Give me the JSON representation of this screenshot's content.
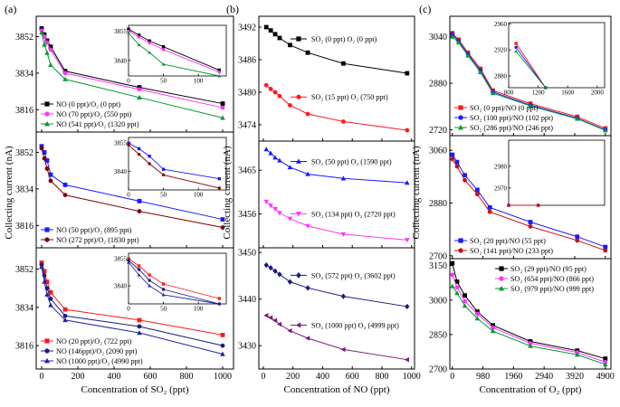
{
  "chart_data": [
    {
      "id": "a",
      "type": "line",
      "panel_label": "(a)",
      "xlabel": "Concentration of SO₂ (ppt)",
      "ylabel": "Collecting current (nA)",
      "xlim": [
        -30,
        1060
      ],
      "xticks": [
        "0",
        "200",
        "400",
        "600",
        "800",
        "1000"
      ],
      "subplots": [
        {
          "ylim": [
            3805,
            3862
          ],
          "yticks": [
            "3816",
            "3834",
            "3852"
          ],
          "legend_position": "bottom-left",
          "inset": {
            "xlim": [
              0,
              140
            ],
            "ylim": [
              3832,
              3858
            ],
            "xticks": [
              "0",
              "50",
              "100"
            ],
            "yticks": [
              "3840",
              "3855"
            ]
          },
          "series": [
            {
              "name": "NO (0 ppt)/O₂ (0 ppt)",
              "color": "#000000",
              "marker": "square",
              "x": [
                0,
                15,
                30,
                50,
                130,
                540,
                1000
              ],
              "y": [
                3856,
                3853,
                3850,
                3847,
                3835,
                3827,
                3819
              ]
            },
            {
              "name": "NO (70 ppt)/O₂ (550 ppt)",
              "color": "#ff33ff",
              "marker": "circle",
              "x": [
                0,
                15,
                30,
                50,
                130,
                540,
                1000
              ],
              "y": [
                3855,
                3852,
                3849,
                3845.5,
                3834,
                3826,
                3817
              ]
            },
            {
              "name": "NO (541 ppt)/O₂ (1320 ppt)",
              "color": "#009933",
              "marker": "triangle",
              "x": [
                0,
                15,
                30,
                50,
                130,
                540,
                1000
              ],
              "y": [
                3854,
                3848,
                3844,
                3838,
                3831,
                3822,
                3812
              ]
            }
          ]
        },
        {
          "ylim": [
            3805,
            3862
          ],
          "yticks": [
            "3816",
            "3834",
            "3852"
          ],
          "legend_position": "bottom-left",
          "inset": {
            "xlim": [
              0,
              140
            ],
            "ylim": [
              3830,
              3858
            ],
            "xticks": [
              "0",
              "50",
              "100"
            ],
            "yticks": [
              "3840",
              "3855"
            ]
          },
          "series": [
            {
              "name": "NO (50 ppt)/O₂ (895 ppt)",
              "color": "#1a1aff",
              "marker": "square",
              "x": [
                0,
                15,
                30,
                50,
                130,
                540,
                1000
              ],
              "y": [
                3855,
                3852,
                3848,
                3841,
                3836,
                3828,
                3819
              ]
            },
            {
              "name": "NO (272 ppt)/O₂ (1830 ppt)",
              "color": "#800000",
              "marker": "circle",
              "x": [
                0,
                15,
                30,
                50,
                130,
                540,
                1000
              ],
              "y": [
                3854,
                3849,
                3844,
                3838,
                3831,
                3823,
                3815
              ]
            }
          ]
        },
        {
          "ylim": [
            3805,
            3862
          ],
          "yticks": [
            "3816",
            "3834",
            "3852"
          ],
          "legend_position": "bottom-left",
          "inset": {
            "xlim": [
              0,
              140
            ],
            "ylim": [
              3830,
              3858
            ],
            "xticks": [
              "0",
              "50",
              "100"
            ],
            "yticks": [
              "3840",
              "3855"
            ]
          },
          "series": [
            {
              "name": "NO (20 ppt)/O₂ (722 ppt)",
              "color": "#ff1a1a",
              "marker": "square",
              "x": [
                0,
                15,
                30,
                50,
                130,
                540,
                1000
              ],
              "y": [
                3855,
                3851,
                3846,
                3841,
                3833,
                3828,
                3821
              ]
            },
            {
              "name": "NO (146ppt)/O₂ (2090 ppt)",
              "color": "#1a1a80",
              "marker": "circle",
              "x": [
                0,
                15,
                30,
                50,
                130,
                540,
                1000
              ],
              "y": [
                3854,
                3849,
                3843,
                3838,
                3830,
                3825,
                3816
              ]
            },
            {
              "name": "NO (1000 ppt)/O₂ (4990 ppt)",
              "color": "#2222aa",
              "marker": "triangle",
              "x": [
                0,
                15,
                30,
                50,
                130,
                540,
                1000
              ],
              "y": [
                3853,
                3846,
                3840,
                3835,
                3828,
                3822,
                3812
              ]
            }
          ]
        }
      ]
    },
    {
      "id": "b",
      "type": "line",
      "panel_label": "(b)",
      "xlabel": "Concentration of NO (ppt)",
      "ylabel": "Collecting current (nA)",
      "xlim": [
        -30,
        1020
      ],
      "xticks": [
        "0",
        "200",
        "400",
        "600",
        "800",
        "1000"
      ],
      "subplots": [
        {
          "ylim": [
            3471,
            3494
          ],
          "yticks": [
            "3474",
            "3480",
            "3486",
            "3492"
          ],
          "series": [
            {
              "name": "SO₂ (0 ppt) O₂ (0 ppt)",
              "color": "#000000",
              "marker": "square",
              "label_in_plot": true,
              "x": [
                20,
                50,
                80,
                110,
                180,
                300,
                540,
                970
              ],
              "y": [
                3492,
                3491.4,
                3490.7,
                3490,
                3488.7,
                3487.3,
                3485.3,
                3483.5
              ]
            },
            {
              "name": "SO₂ (15 ppt) O₂ (750 ppt)",
              "color": "#ff1a1a",
              "marker": "circle",
              "label_in_plot": true,
              "x": [
                20,
                50,
                80,
                110,
                180,
                300,
                540,
                970
              ],
              "y": [
                3481.3,
                3480.6,
                3480,
                3479.3,
                3477.6,
                3476,
                3474.6,
                3473
              ]
            }
          ]
        },
        {
          "ylim": [
            3449,
            3471
          ],
          "yticks": [
            "3456",
            "3465"
          ],
          "series": [
            {
              "name": "SO₂ (50 ppt) O₂ (1590 ppt)",
              "color": "#1a1aff",
              "marker": "triangle",
              "label_in_plot": true,
              "x": [
                20,
                50,
                80,
                110,
                180,
                300,
                540,
                970
              ],
              "y": [
                3469.3,
                3468.5,
                3467.6,
                3467,
                3465.6,
                3464.2,
                3463.3,
                3462.4
              ]
            },
            {
              "name": "SO₂ (134 ppt) O₂ (2720 ppt)",
              "color": "#ff33ff",
              "marker": "triangle-down",
              "label_in_plot": true,
              "x": [
                20,
                50,
                80,
                110,
                180,
                300,
                540,
                970
              ],
              "y": [
                3458.5,
                3457.7,
                3457,
                3456.2,
                3455,
                3453.5,
                3451.8,
                3450.6
              ]
            }
          ]
        },
        {
          "ylim": [
            3425,
            3451
          ],
          "yticks": [
            "3430",
            "3440",
            "3450"
          ],
          "series": [
            {
              "name": "SO₂ (572 ppt) O₂ (3602 ppt)",
              "color": "#1a1a80",
              "marker": "diamond",
              "label_in_plot": true,
              "x": [
                20,
                50,
                80,
                110,
                180,
                300,
                540,
                970
              ],
              "y": [
                3447.3,
                3446.7,
                3446,
                3445.3,
                3443.7,
                3442.4,
                3440.6,
                3438.4
              ]
            },
            {
              "name": "SO₂ (1000 ppt) O₂ (4999 ppt)",
              "color": "#7a1a7a",
              "marker": "triangle-left",
              "label_in_plot": true,
              "x": [
                20,
                50,
                80,
                110,
                180,
                300,
                540,
                970
              ],
              "y": [
                3436.5,
                3436,
                3435.4,
                3434.6,
                3433.2,
                3431.6,
                3429.2,
                3427
              ]
            }
          ]
        }
      ]
    },
    {
      "id": "c",
      "type": "line",
      "panel_label": "(c)",
      "xlabel": "Concentration of O₂ (ppt)",
      "ylabel": "Collecting current (nA)",
      "xlim": [
        -80,
        5080
      ],
      "xticks": [
        "0",
        "980",
        "1960",
        "2940",
        "3920",
        "4900"
      ],
      "subplots": [
        {
          "ylim": [
            2700,
            3110
          ],
          "yticks": [
            "2720",
            "2880",
            "3040"
          ],
          "legend_position": "bottom-left",
          "inset": {
            "xlim": [
              800,
              2100
            ],
            "ylim": [
              2862,
              2962
            ],
            "xticks": [
              "800",
              "1200",
              "1600",
              "2000"
            ],
            "yticks": [
              "2880",
              "2920",
              "2960"
            ]
          },
          "series": [
            {
              "name": "SO₂ (0 ppt)/NO (0 ppt)",
              "color": "#ff1a1a",
              "marker": "square",
              "x": [
                0,
                200,
                500,
                900,
                1300,
                2500,
                4000,
                4900
              ],
              "y": [
                3052,
                3030,
                2985,
                2930,
                2855,
                2810,
                2765,
                2725
              ]
            },
            {
              "name": "SO₂ (100 ppt)/NO (102 ppt)",
              "color": "#1a1aff",
              "marker": "circle",
              "x": [
                0,
                200,
                500,
                900,
                1300,
                2500,
                4000,
                4900
              ],
              "y": [
                3048,
                3025,
                2980,
                2924,
                2850,
                2805,
                2760,
                2720
              ]
            },
            {
              "name": "SO₂ (286 ppt)/NO (246 ppt)",
              "color": "#009933",
              "marker": "triangle",
              "x": [
                0,
                200,
                500,
                900,
                1300,
                2500,
                4000,
                4900
              ],
              "y": [
                3040,
                3020,
                2975,
                2918,
                2846,
                2802,
                2758,
                2718
              ]
            }
          ]
        },
        {
          "ylim": [
            2690,
            3110
          ],
          "yticks": [
            "2700",
            "2880",
            "3060"
          ],
          "legend_position": "bottom-left",
          "inset": {
            "xlim": [
              800,
              2100
            ],
            "ylim": [
              2962,
              2992
            ],
            "xticks": [],
            "yticks": [
              "2970",
              "2980"
            ]
          },
          "series": [
            {
              "name": "SO₂ (20 ppt)/NO (55 ppt)",
              "color": "#1a1aff",
              "marker": "square",
              "x": [
                0,
                150,
                400,
                800,
                1200,
                2500,
                4000,
                4900
              ],
              "y": [
                3045,
                3020,
                2975,
                2925,
                2865,
                2815,
                2765,
                2730
              ]
            },
            {
              "name": "SO₂ (141 ppt)/NO (233 ppt)",
              "color": "#cc1111",
              "marker": "circle",
              "x": [
                0,
                150,
                400,
                800,
                1200,
                2500,
                4000,
                4900
              ],
              "y": [
                3030,
                3005,
                2958,
                2910,
                2850,
                2800,
                2752,
                2718
              ]
            }
          ]
        },
        {
          "ylim": [
            2700,
            3180
          ],
          "yticks": [
            "2700",
            "2850",
            "3000",
            "3150"
          ],
          "legend_position": "top-right",
          "series": [
            {
              "name": "SO₂ (29 ppt)/NO (95 ppt)",
              "color": "#000000",
              "marker": "square",
              "x": [
                0,
                150,
                400,
                800,
                1300,
                2500,
                4000,
                4900
              ],
              "y": [
                3160,
                3080,
                3020,
                2950,
                2890,
                2820,
                2780,
                2745
              ]
            },
            {
              "name": "SO₂ (654 ppt)/NO (866 ppt)",
              "color": "#ff33ff",
              "marker": "circle",
              "x": [
                0,
                150,
                400,
                800,
                1300,
                2500,
                4000,
                4900
              ],
              "y": [
                3110,
                3055,
                2995,
                2940,
                2880,
                2812,
                2772,
                2730
              ]
            },
            {
              "name": "SO₂ (979 ppt)/NO (999 ppt)",
              "color": "#009933",
              "marker": "triangle",
              "x": [
                0,
                150,
                400,
                800,
                1300,
                2500,
                4000,
                4900
              ],
              "y": [
                3060,
                3030,
                2975,
                2920,
                2865,
                2800,
                2762,
                2720
              ]
            }
          ]
        }
      ]
    }
  ]
}
